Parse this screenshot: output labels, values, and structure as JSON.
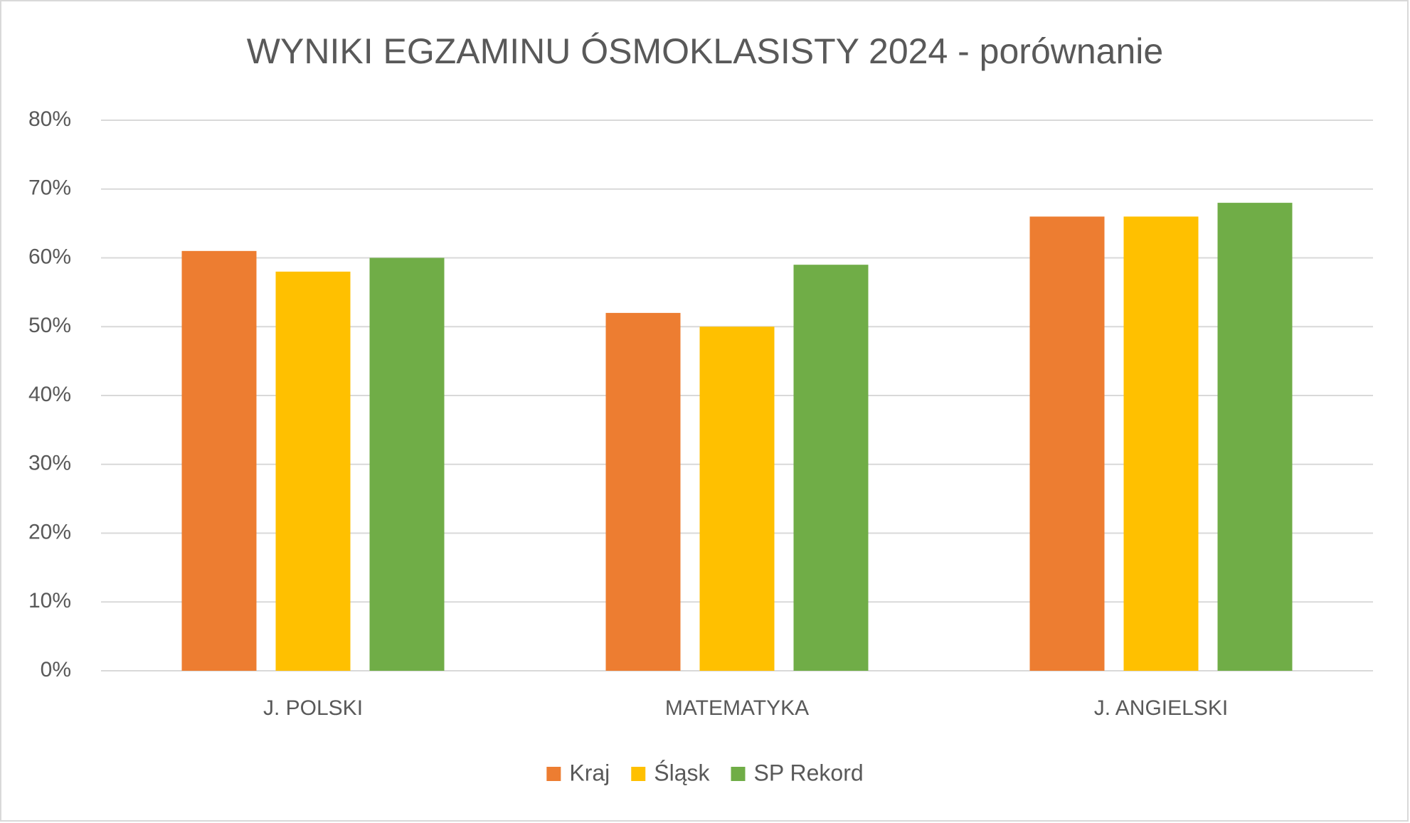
{
  "chart_data": {
    "type": "bar",
    "title": "WYNIKI EGZAMINU ÓSMOKLASISTY 2024 - porównanie",
    "categories": [
      "J. POLSKI",
      "MATEMATYKA",
      "J. ANGIELSKI"
    ],
    "series": [
      {
        "name": "Kraj",
        "color": "#ed7d31",
        "values": [
          61,
          52,
          66
        ]
      },
      {
        "name": "Śląsk",
        "color": "#ffc000",
        "values": [
          58,
          50,
          66
        ]
      },
      {
        "name": "SP Rekord",
        "color": "#70ad47",
        "values": [
          60,
          59,
          68
        ]
      }
    ],
    "ylim": [
      0,
      80
    ],
    "yticks": [
      {
        "value": 0,
        "label": "0%"
      },
      {
        "value": 10,
        "label": "10%"
      },
      {
        "value": 20,
        "label": "20%"
      },
      {
        "value": 30,
        "label": "30%"
      },
      {
        "value": 40,
        "label": "40%"
      },
      {
        "value": 50,
        "label": "50%"
      },
      {
        "value": 60,
        "label": "60%"
      },
      {
        "value": 70,
        "label": "70%"
      },
      {
        "value": 80,
        "label": "80%"
      }
    ],
    "grid": true,
    "legend": "bottom"
  }
}
